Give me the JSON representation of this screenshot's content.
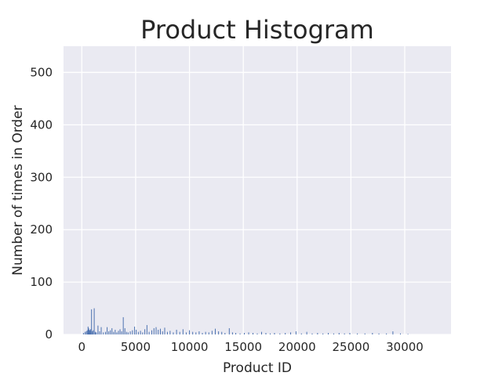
{
  "chart_data": {
    "type": "bar",
    "title": "Product Histogram",
    "xlabel": "Product ID",
    "ylabel": "Number of times in Order",
    "xlim": [
      -1700,
      34300
    ],
    "ylim": [
      0,
      550
    ],
    "xticks": [
      0,
      5000,
      10000,
      15000,
      20000,
      25000,
      30000
    ],
    "yticks": [
      0,
      100,
      200,
      300,
      400,
      500
    ],
    "grid": true,
    "bar_color": "#4c72b0",
    "background_color": "#eaeaf2",
    "points": [
      {
        "x": 150,
        "y": 3
      },
      {
        "x": 300,
        "y": 5
      },
      {
        "x": 420,
        "y": 6
      },
      {
        "x": 500,
        "y": 8
      },
      {
        "x": 580,
        "y": 15
      },
      {
        "x": 630,
        "y": 12
      },
      {
        "x": 700,
        "y": 9
      },
      {
        "x": 760,
        "y": 7
      },
      {
        "x": 820,
        "y": 10
      },
      {
        "x": 900,
        "y": 48
      },
      {
        "x": 980,
        "y": 6
      },
      {
        "x": 1050,
        "y": 8
      },
      {
        "x": 1150,
        "y": 50
      },
      {
        "x": 1250,
        "y": 5
      },
      {
        "x": 1350,
        "y": 4
      },
      {
        "x": 1500,
        "y": 17
      },
      {
        "x": 1650,
        "y": 6
      },
      {
        "x": 1800,
        "y": 14
      },
      {
        "x": 2000,
        "y": 4
      },
      {
        "x": 2200,
        "y": 5
      },
      {
        "x": 2350,
        "y": 14
      },
      {
        "x": 2500,
        "y": 6
      },
      {
        "x": 2650,
        "y": 8
      },
      {
        "x": 2800,
        "y": 12
      },
      {
        "x": 2950,
        "y": 5
      },
      {
        "x": 3100,
        "y": 9
      },
      {
        "x": 3250,
        "y": 4
      },
      {
        "x": 3400,
        "y": 7
      },
      {
        "x": 3550,
        "y": 10
      },
      {
        "x": 3700,
        "y": 6
      },
      {
        "x": 3850,
        "y": 33
      },
      {
        "x": 4000,
        "y": 12
      },
      {
        "x": 4150,
        "y": 5
      },
      {
        "x": 4300,
        "y": 4
      },
      {
        "x": 4500,
        "y": 6
      },
      {
        "x": 4700,
        "y": 8
      },
      {
        "x": 4900,
        "y": 15
      },
      {
        "x": 5050,
        "y": 9
      },
      {
        "x": 5250,
        "y": 5
      },
      {
        "x": 5450,
        "y": 7
      },
      {
        "x": 5650,
        "y": 4
      },
      {
        "x": 5850,
        "y": 10
      },
      {
        "x": 6050,
        "y": 18
      },
      {
        "x": 6250,
        "y": 5
      },
      {
        "x": 6500,
        "y": 8
      },
      {
        "x": 6700,
        "y": 12
      },
      {
        "x": 6900,
        "y": 14
      },
      {
        "x": 7100,
        "y": 9
      },
      {
        "x": 7300,
        "y": 11
      },
      {
        "x": 7500,
        "y": 6
      },
      {
        "x": 7700,
        "y": 13
      },
      {
        "x": 7950,
        "y": 5
      },
      {
        "x": 8200,
        "y": 7
      },
      {
        "x": 8500,
        "y": 4
      },
      {
        "x": 8800,
        "y": 9
      },
      {
        "x": 9100,
        "y": 5
      },
      {
        "x": 9400,
        "y": 10
      },
      {
        "x": 9700,
        "y": 4
      },
      {
        "x": 10000,
        "y": 8
      },
      {
        "x": 10300,
        "y": 5
      },
      {
        "x": 10600,
        "y": 4
      },
      {
        "x": 10900,
        "y": 6
      },
      {
        "x": 11200,
        "y": 3
      },
      {
        "x": 11500,
        "y": 5
      },
      {
        "x": 11800,
        "y": 4
      },
      {
        "x": 12100,
        "y": 7
      },
      {
        "x": 12400,
        "y": 11
      },
      {
        "x": 12700,
        "y": 6
      },
      {
        "x": 13000,
        "y": 5
      },
      {
        "x": 13300,
        "y": 3
      },
      {
        "x": 13700,
        "y": 12
      },
      {
        "x": 14000,
        "y": 4
      },
      {
        "x": 14300,
        "y": 3
      },
      {
        "x": 14700,
        "y": 2
      },
      {
        "x": 15100,
        "y": 3
      },
      {
        "x": 15500,
        "y": 4
      },
      {
        "x": 15900,
        "y": 3
      },
      {
        "x": 16300,
        "y": 2
      },
      {
        "x": 16700,
        "y": 5
      },
      {
        "x": 17100,
        "y": 3
      },
      {
        "x": 17500,
        "y": 2
      },
      {
        "x": 17900,
        "y": 3
      },
      {
        "x": 18400,
        "y": 2
      },
      {
        "x": 18900,
        "y": 3
      },
      {
        "x": 19400,
        "y": 4
      },
      {
        "x": 19900,
        "y": 6
      },
      {
        "x": 20400,
        "y": 2
      },
      {
        "x": 20900,
        "y": 5
      },
      {
        "x": 21400,
        "y": 2
      },
      {
        "x": 21900,
        "y": 3
      },
      {
        "x": 22400,
        "y": 2
      },
      {
        "x": 22900,
        "y": 3
      },
      {
        "x": 23400,
        "y": 2
      },
      {
        "x": 23900,
        "y": 3
      },
      {
        "x": 24400,
        "y": 2
      },
      {
        "x": 24900,
        "y": 3
      },
      {
        "x": 25600,
        "y": 2
      },
      {
        "x": 26300,
        "y": 2
      },
      {
        "x": 27000,
        "y": 3
      },
      {
        "x": 27600,
        "y": 2
      },
      {
        "x": 28300,
        "y": 2
      },
      {
        "x": 28900,
        "y": 6
      },
      {
        "x": 29600,
        "y": 2
      },
      {
        "x": 30300,
        "y": 1
      }
    ]
  }
}
